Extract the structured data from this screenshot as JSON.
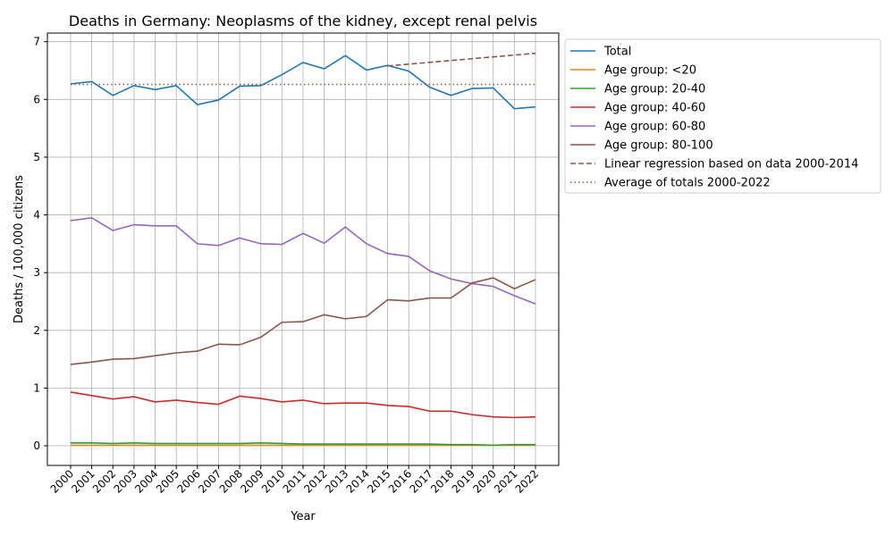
{
  "chart_data": {
    "type": "line",
    "title": "Deaths in Germany: Neoplasms of the kidney, except renal pelvis",
    "xlabel": "Year",
    "ylabel": "Deaths / 100,000 citizens",
    "xlim": [
      1998.9,
      2023.1
    ],
    "ylim": [
      -0.34,
      7.15
    ],
    "grid": true,
    "legend_placement": "outside-top-right",
    "x": [
      2000,
      2001,
      2002,
      2003,
      2004,
      2005,
      2006,
      2007,
      2008,
      2009,
      2010,
      2011,
      2012,
      2013,
      2014,
      2015,
      2016,
      2017,
      2018,
      2019,
      2020,
      2021,
      2022
    ],
    "x_tick_labels": [
      "2000",
      "2001",
      "2002",
      "2003",
      "2004",
      "2005",
      "2006",
      "2007",
      "2008",
      "2009",
      "2010",
      "2011",
      "2012",
      "2013",
      "2014",
      "2015",
      "2016",
      "2017",
      "2018",
      "2019",
      "2020",
      "2021",
      "2022"
    ],
    "y_ticks": [
      0,
      1,
      2,
      3,
      4,
      5,
      6,
      7
    ],
    "y_tick_labels": [
      "0",
      "1",
      "2",
      "3",
      "4",
      "5",
      "6",
      "7"
    ],
    "series": [
      {
        "name": "Total",
        "color": "#1f77b4",
        "style": "solid",
        "values": [
          6.27,
          6.31,
          6.07,
          6.24,
          6.17,
          6.24,
          5.91,
          5.99,
          6.23,
          6.24,
          6.43,
          6.64,
          6.53,
          6.76,
          6.51,
          6.59,
          6.49,
          6.21,
          6.07,
          6.19,
          6.2,
          5.84,
          5.87
        ]
      },
      {
        "name": "Age group: <20",
        "color": "#ff7f0e",
        "style": "solid",
        "values": [
          0.01,
          0.01,
          0.01,
          0.01,
          0.01,
          0.01,
          0.01,
          0.01,
          0.01,
          0.01,
          0.01,
          0.01,
          0.01,
          0.01,
          0.01,
          0.01,
          0.01,
          0.01,
          0.01,
          0.01,
          0.01,
          0.01,
          0.01
        ]
      },
      {
        "name": "Age group: 20-40",
        "color": "#2ca02c",
        "style": "solid",
        "values": [
          0.05,
          0.05,
          0.04,
          0.05,
          0.04,
          0.04,
          0.04,
          0.04,
          0.04,
          0.05,
          0.04,
          0.03,
          0.03,
          0.03,
          0.03,
          0.03,
          0.03,
          0.03,
          0.02,
          0.02,
          0.01,
          0.02,
          0.02
        ]
      },
      {
        "name": "Age group: 40-60",
        "color": "#d62728",
        "style": "solid",
        "values": [
          0.93,
          0.87,
          0.81,
          0.85,
          0.76,
          0.79,
          0.75,
          0.72,
          0.86,
          0.82,
          0.76,
          0.79,
          0.73,
          0.74,
          0.74,
          0.7,
          0.68,
          0.6,
          0.6,
          0.54,
          0.5,
          0.49,
          0.5
        ]
      },
      {
        "name": "Age group: 60-80",
        "color": "#9467bd",
        "style": "solid",
        "values": [
          3.9,
          3.95,
          3.73,
          3.83,
          3.81,
          3.81,
          3.5,
          3.47,
          3.6,
          3.5,
          3.49,
          3.68,
          3.51,
          3.79,
          3.5,
          3.33,
          3.28,
          3.03,
          2.89,
          2.81,
          2.76,
          2.6,
          2.46
        ]
      },
      {
        "name": "Age group: 80-100",
        "color": "#8c564b",
        "style": "solid",
        "values": [
          1.41,
          1.45,
          1.5,
          1.51,
          1.56,
          1.61,
          1.64,
          1.76,
          1.75,
          1.88,
          2.14,
          2.15,
          2.27,
          2.2,
          2.24,
          2.53,
          2.51,
          2.56,
          2.56,
          2.82,
          2.91,
          2.72,
          2.88
        ]
      },
      {
        "name": "Linear regression based on data 2000-2014",
        "color": "#8c564b",
        "style": "dashed",
        "x": [
          2015,
          2022
        ],
        "values": [
          6.58,
          6.8
        ]
      },
      {
        "name": "Average of totals 2000-2022",
        "color": "#8c564b",
        "style": "dotted",
        "x": [
          2000,
          2022
        ],
        "values": [
          6.26,
          6.26
        ]
      }
    ]
  }
}
